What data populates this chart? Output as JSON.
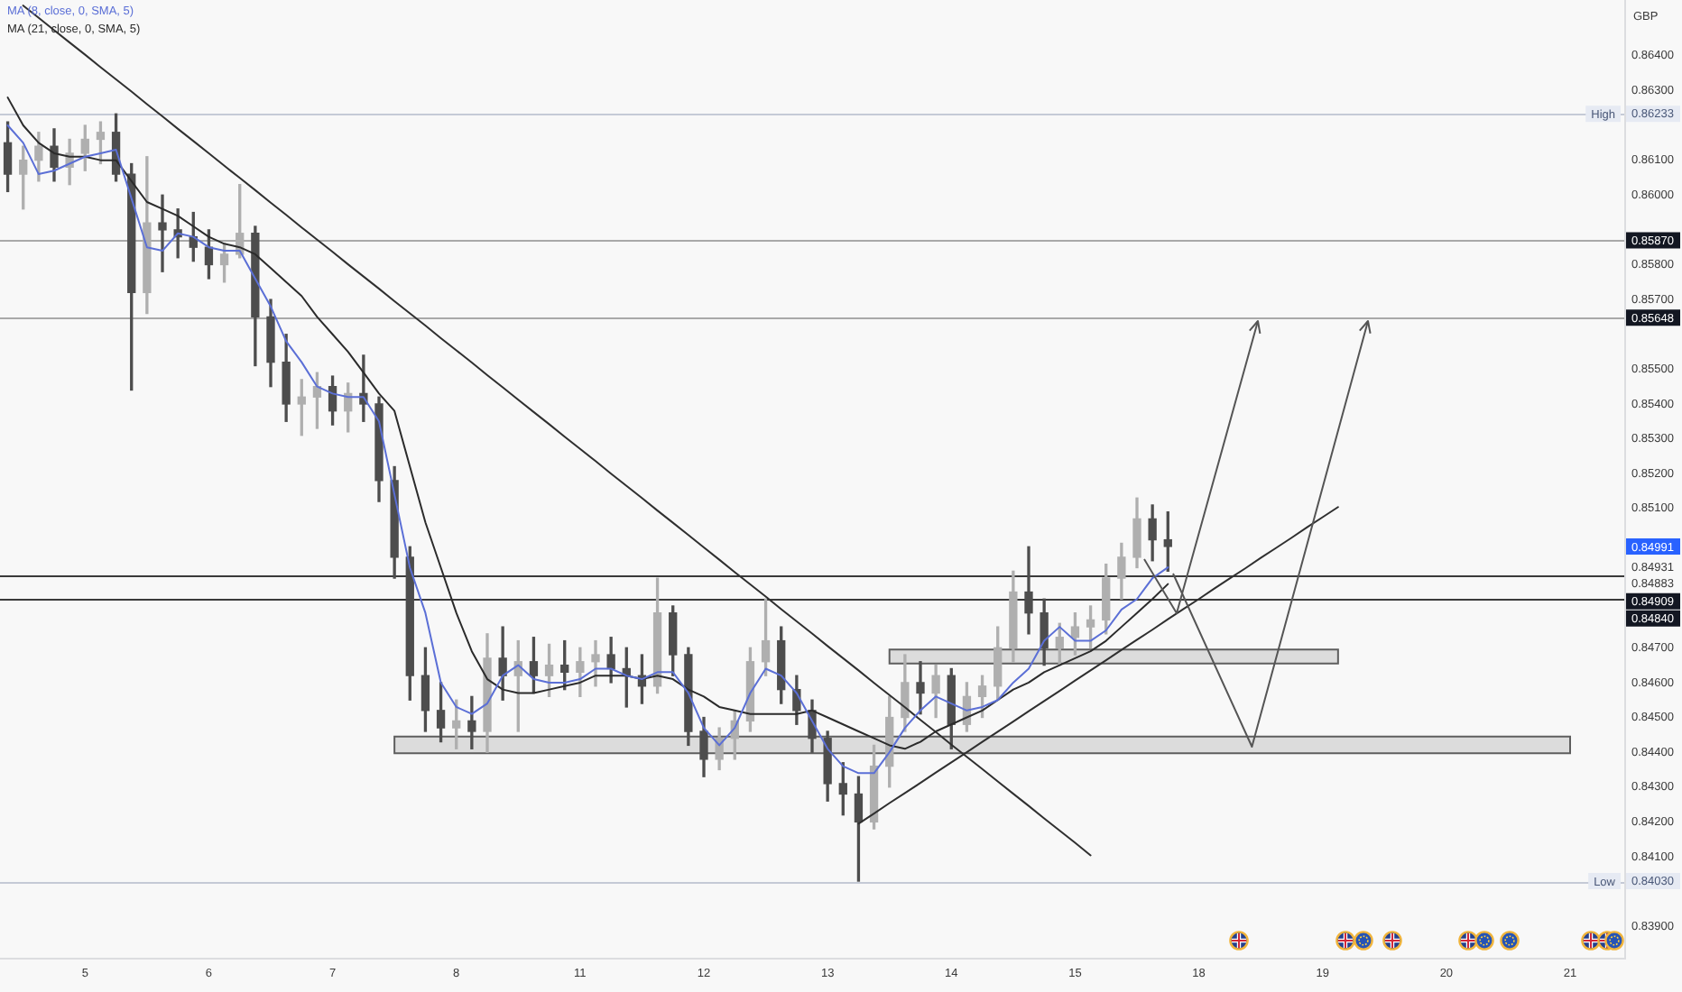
{
  "chart_data": {
    "type": "candlestick",
    "ylabel": "GBP",
    "legend": "top left",
    "grid": false,
    "marker": "none",
    "categories": [
      null,
      null,
      null,
      null,
      null,
      "5",
      null,
      null,
      null,
      null,
      null,
      null,
      null,
      "6",
      null,
      null,
      null,
      null,
      null,
      null,
      null,
      "7",
      null,
      null,
      null,
      null,
      null,
      null,
      null,
      "8",
      null,
      null,
      null,
      null,
      null,
      null,
      null,
      "11",
      null,
      null,
      null,
      null,
      null,
      null,
      null,
      "12",
      null,
      null,
      null,
      null,
      null,
      null,
      null,
      "13",
      null,
      null,
      null,
      null,
      null,
      null,
      null,
      "14",
      null,
      null,
      null,
      null,
      null,
      null,
      null,
      "15",
      null,
      null,
      null,
      null,
      null,
      null,
      null,
      "18",
      null,
      null,
      null,
      null,
      null,
      null,
      null,
      "19",
      null,
      null,
      null,
      null,
      null,
      null,
      null,
      "20",
      null,
      null,
      null,
      null,
      null,
      null,
      null,
      "21",
      null,
      null,
      null
    ],
    "ohlc": [
      [
        0.8615,
        0.8621,
        0.8601,
        0.8606
      ],
      [
        0.8606,
        0.8614,
        0.8596,
        0.861
      ],
      [
        0.861,
        0.8618,
        0.8604,
        0.8614
      ],
      [
        0.8614,
        0.8619,
        0.8604,
        0.8608
      ],
      [
        0.8608,
        0.8616,
        0.8603,
        0.8612
      ],
      [
        0.8612,
        0.862,
        0.8607,
        0.8616
      ],
      [
        0.8616,
        0.8621,
        0.8609,
        0.8618
      ],
      [
        0.8618,
        0.86233,
        0.8604,
        0.8606
      ],
      [
        0.8606,
        0.8609,
        0.8544,
        0.8572
      ],
      [
        0.8572,
        0.8611,
        0.8566,
        0.8592
      ],
      [
        0.8592,
        0.86,
        0.8578,
        0.859
      ],
      [
        0.859,
        0.8596,
        0.8582,
        0.8588
      ],
      [
        0.8588,
        0.8595,
        0.8581,
        0.8585
      ],
      [
        0.8585,
        0.859,
        0.8576,
        0.858
      ],
      [
        0.858,
        0.8586,
        0.8575,
        0.8583
      ],
      [
        0.8583,
        0.8603,
        0.8582,
        0.8589
      ],
      [
        0.8589,
        0.8591,
        0.8551,
        0.8565
      ],
      [
        0.8565,
        0.857,
        0.8545,
        0.8552
      ],
      [
        0.8552,
        0.856,
        0.8535,
        0.854
      ],
      [
        0.854,
        0.8547,
        0.8531,
        0.8542
      ],
      [
        0.8542,
        0.8549,
        0.8533,
        0.8545
      ],
      [
        0.8545,
        0.8548,
        0.8534,
        0.8538
      ],
      [
        0.8538,
        0.8546,
        0.8532,
        0.8543
      ],
      [
        0.8543,
        0.8554,
        0.8535,
        0.854
      ],
      [
        0.854,
        0.8542,
        0.8512,
        0.8518
      ],
      [
        0.8518,
        0.8522,
        0.849,
        0.8496
      ],
      [
        0.8496,
        0.8499,
        0.8455,
        0.8462
      ],
      [
        0.8462,
        0.847,
        0.8446,
        0.8452
      ],
      [
        0.8452,
        0.846,
        0.8443,
        0.8447
      ],
      [
        0.8447,
        0.8455,
        0.8441,
        0.8449
      ],
      [
        0.8449,
        0.8456,
        0.8441,
        0.8446
      ],
      [
        0.8446,
        0.8474,
        0.844,
        0.8467
      ],
      [
        0.8467,
        0.8476,
        0.8455,
        0.8462
      ],
      [
        0.8462,
        0.8472,
        0.8446,
        0.8466
      ],
      [
        0.8466,
        0.8473,
        0.8457,
        0.8462
      ],
      [
        0.8462,
        0.8471,
        0.8456,
        0.8465
      ],
      [
        0.8465,
        0.8472,
        0.8458,
        0.8463
      ],
      [
        0.8463,
        0.847,
        0.8456,
        0.8466
      ],
      [
        0.8466,
        0.8472,
        0.8459,
        0.8468
      ],
      [
        0.8468,
        0.8473,
        0.846,
        0.8464
      ],
      [
        0.8464,
        0.847,
        0.8453,
        0.8462
      ],
      [
        0.8462,
        0.8468,
        0.8454,
        0.8459
      ],
      [
        0.8459,
        0.849,
        0.8457,
        0.848
      ],
      [
        0.848,
        0.8482,
        0.8462,
        0.8468
      ],
      [
        0.8468,
        0.847,
        0.8442,
        0.8446
      ],
      [
        0.8446,
        0.845,
        0.8433,
        0.8438
      ],
      [
        0.8438,
        0.8447,
        0.8435,
        0.8444
      ],
      [
        0.8444,
        0.8452,
        0.8438,
        0.8449
      ],
      [
        0.8449,
        0.847,
        0.8446,
        0.8466
      ],
      [
        0.8466,
        0.8484,
        0.8462,
        0.8472
      ],
      [
        0.8472,
        0.8476,
        0.8454,
        0.8458
      ],
      [
        0.8458,
        0.8462,
        0.8448,
        0.8452
      ],
      [
        0.8452,
        0.8455,
        0.844,
        0.8444
      ],
      [
        0.8444,
        0.8446,
        0.8426,
        0.8431
      ],
      [
        0.8431,
        0.8437,
        0.8422,
        0.8428
      ],
      [
        0.8428,
        0.8433,
        0.8403,
        0.842
      ],
      [
        0.842,
        0.8442,
        0.8418,
        0.8436
      ],
      [
        0.8436,
        0.8456,
        0.843,
        0.845
      ],
      [
        0.845,
        0.8468,
        0.8446,
        0.846
      ],
      [
        0.846,
        0.8466,
        0.8451,
        0.8457
      ],
      [
        0.8457,
        0.8465,
        0.845,
        0.8462
      ],
      [
        0.8462,
        0.8464,
        0.8441,
        0.8448
      ],
      [
        0.8448,
        0.846,
        0.8446,
        0.8456
      ],
      [
        0.8456,
        0.8462,
        0.845,
        0.8459
      ],
      [
        0.8459,
        0.8476,
        0.8455,
        0.847
      ],
      [
        0.847,
        0.8492,
        0.8466,
        0.8486
      ],
      [
        0.8486,
        0.8499,
        0.8474,
        0.848
      ],
      [
        0.848,
        0.8484,
        0.8465,
        0.847
      ],
      [
        0.847,
        0.8477,
        0.8465,
        0.8473
      ],
      [
        0.8473,
        0.848,
        0.8468,
        0.8476
      ],
      [
        0.8476,
        0.8482,
        0.847,
        0.8478
      ],
      [
        0.8478,
        0.8494,
        0.8474,
        0.849
      ],
      [
        0.849,
        0.85,
        0.8484,
        0.8496
      ],
      [
        0.8496,
        0.8513,
        0.8493,
        0.8507
      ],
      [
        0.8507,
        0.8511,
        0.8495,
        0.8501
      ],
      [
        0.8501,
        0.8509,
        0.8492,
        0.84991
      ],
      null,
      null,
      null,
      null,
      null,
      null,
      null,
      null,
      null,
      null,
      null,
      null,
      null,
      null,
      null,
      null,
      null,
      null,
      null,
      null,
      null,
      null,
      null,
      null,
      null,
      null,
      null,
      null,
      null
    ],
    "colors": [
      "#4d4d4d",
      "#afafaf",
      "#afafaf",
      "#4d4d4d",
      "#afafaf",
      "#afafaf",
      "#afafaf",
      "#4d4d4d",
      "#4d4d4d",
      "#afafaf",
      "#4d4d4d",
      "#4d4d4d",
      "#4d4d4d",
      "#4d4d4d",
      "#afafaf",
      "#afafaf",
      "#4d4d4d",
      "#4d4d4d",
      "#4d4d4d",
      "#afafaf",
      "#afafaf",
      "#4d4d4d",
      "#afafaf",
      "#4d4d4d",
      "#4d4d4d",
      "#4d4d4d",
      "#4d4d4d",
      "#4d4d4d",
      "#4d4d4d",
      "#afafaf",
      "#4d4d4d",
      "#afafaf",
      "#4d4d4d",
      "#afafaf",
      "#4d4d4d",
      "#afafaf",
      "#4d4d4d",
      "#afafaf",
      "#afafaf",
      "#4d4d4d",
      "#4d4d4d",
      "#4d4d4d",
      "#afafaf",
      "#4d4d4d",
      "#4d4d4d",
      "#4d4d4d",
      "#afafaf",
      "#afafaf",
      "#afafaf",
      "#afafaf",
      "#4d4d4d",
      "#4d4d4d",
      "#4d4d4d",
      "#4d4d4d",
      "#4d4d4d",
      "#4d4d4d",
      "#afafaf",
      "#afafaf",
      "#afafaf",
      "#4d4d4d",
      "#afafaf",
      "#4d4d4d",
      "#afafaf",
      "#afafaf",
      "#afafaf",
      "#afafaf",
      "#4d4d4d",
      "#4d4d4d",
      "#afafaf",
      "#afafaf",
      "#afafaf",
      "#afafaf",
      "#afafaf",
      "#afafaf",
      "#4d4d4d",
      "#4d4d4d",
      null,
      null,
      null,
      null,
      null,
      null,
      null,
      null,
      null,
      null,
      null,
      null,
      null,
      null,
      null,
      null,
      null,
      null,
      null,
      null,
      null,
      null,
      null,
      null,
      null,
      null,
      null,
      null,
      null
    ],
    "value_labels": [
      null,
      null,
      null,
      null,
      null,
      null,
      null,
      null,
      null,
      null,
      null,
      null,
      null,
      null,
      null,
      null,
      null,
      null,
      null,
      null,
      null,
      null,
      null,
      null,
      null,
      null,
      null,
      null,
      null,
      null,
      null,
      null,
      null,
      null,
      null,
      null,
      null,
      null,
      null,
      null,
      null,
      null,
      null,
      null,
      null,
      null,
      null,
      null,
      null,
      null,
      null,
      null,
      null,
      null,
      null,
      null,
      null,
      null,
      null,
      null,
      null,
      null,
      null,
      null,
      null,
      null,
      null,
      null,
      null,
      null,
      null,
      null,
      null,
      null,
      null,
      "0.84991",
      null,
      null,
      null,
      null,
      null,
      null,
      null,
      null,
      null,
      null,
      null,
      null,
      null,
      null,
      null,
      null,
      null,
      null,
      null,
      null,
      null,
      null,
      null,
      null,
      null,
      null,
      null,
      null,
      null
    ],
    "series": [
      {
        "name": "MA (8, close, 0, SMA, 5)",
        "type": "line",
        "color": "#5b6fd6",
        "values": [
          0.862,
          0.8615,
          0.8606,
          0.8607,
          0.8609,
          0.8611,
          0.8612,
          0.8613,
          0.8599,
          0.8585,
          0.8584,
          0.8589,
          0.8588,
          0.8585,
          0.8584,
          0.8584,
          0.8576,
          0.8568,
          0.8558,
          0.8552,
          0.8545,
          0.8543,
          0.8542,
          0.8542,
          0.8535,
          0.8514,
          0.8493,
          0.848,
          0.846,
          0.8453,
          0.8451,
          0.8454,
          0.8462,
          0.8465,
          0.8461,
          0.846,
          0.846,
          0.8461,
          0.8464,
          0.8464,
          0.8462,
          0.8461,
          0.8463,
          0.8463,
          0.8457,
          0.8447,
          0.8442,
          0.8447,
          0.8457,
          0.8464,
          0.8462,
          0.8457,
          0.8449,
          0.8441,
          0.8436,
          0.8434,
          0.8434,
          0.844,
          0.8447,
          0.8452,
          0.8456,
          0.8454,
          0.8452,
          0.8453,
          0.8455,
          0.846,
          0.8464,
          0.8472,
          0.8476,
          0.8472,
          0.8472,
          0.8475,
          0.8481,
          0.8484,
          0.849,
          0.84931,
          null,
          null,
          null,
          null,
          null,
          null,
          null,
          null,
          null,
          null,
          null,
          null,
          null,
          null,
          null,
          null,
          null,
          null,
          null,
          null,
          null,
          null,
          null,
          null,
          null,
          null,
          null,
          null,
          null
        ]
      },
      {
        "name": "MA (21, close, 0, SMA, 5)",
        "type": "line",
        "color": "#2b2b2b",
        "values": [
          0.8628,
          0.862,
          0.8615,
          0.8612,
          0.8611,
          0.8611,
          0.861,
          0.861,
          0.8604,
          0.8598,
          0.8596,
          0.8594,
          0.8591,
          0.8588,
          0.8586,
          0.8585,
          0.8583,
          0.8579,
          0.8575,
          0.8571,
          0.8565,
          0.856,
          0.8555,
          0.8549,
          0.8543,
          0.8538,
          0.8522,
          0.8506,
          0.8493,
          0.848,
          0.8469,
          0.8461,
          0.8458,
          0.8457,
          0.8457,
          0.8458,
          0.8459,
          0.846,
          0.8462,
          0.8462,
          0.8462,
          0.8461,
          0.8462,
          0.8461,
          0.8458,
          0.8456,
          0.8453,
          0.8452,
          0.8451,
          0.8451,
          0.8451,
          0.8451,
          0.8452,
          0.845,
          0.8448,
          0.8446,
          0.8444,
          0.8442,
          0.8441,
          0.8443,
          0.8446,
          0.8448,
          0.845,
          0.8452,
          0.8455,
          0.8458,
          0.846,
          0.8463,
          0.8465,
          0.8467,
          0.8469,
          0.8472,
          0.8476,
          0.848,
          0.8484,
          0.84883,
          null,
          null,
          null,
          null,
          null,
          null,
          null,
          null,
          null,
          null,
          null,
          null,
          null,
          null,
          null,
          null,
          null,
          null,
          null,
          null,
          null,
          null,
          null,
          null,
          null,
          null,
          null,
          null,
          null
        ]
      },
      {
        "type": "line",
        "color": "#2f2f2f",
        "values": [
          null,
          0.86544,
          0.86509,
          0.86473,
          0.86438,
          0.86403,
          0.86367,
          0.86332,
          0.86297,
          0.86261,
          0.86226,
          0.8619,
          0.86155,
          0.8612,
          0.86084,
          0.86049,
          0.86014,
          0.85978,
          0.85943,
          0.85907,
          0.85872,
          0.85837,
          0.85801,
          0.85766,
          0.85731,
          0.85695,
          0.8566,
          0.85625,
          0.85589,
          0.85554,
          0.85519,
          0.85483,
          0.85448,
          0.85412,
          0.85377,
          0.85342,
          0.85306,
          0.85271,
          0.85236,
          0.852,
          0.85165,
          0.8513,
          0.85094,
          0.85059,
          0.85024,
          0.84988,
          0.84953,
          0.84917,
          0.84882,
          0.84847,
          0.84811,
          0.84776,
          0.84741,
          0.84705,
          0.8467,
          0.84635,
          0.84599,
          0.84564,
          0.84529,
          0.84493,
          0.84458,
          0.84422,
          0.84387,
          0.84352,
          0.84316,
          0.84281,
          0.84246,
          0.8421,
          0.84175,
          0.8414,
          0.84104,
          null,
          null,
          null,
          null,
          null,
          null,
          null,
          null,
          null,
          null,
          null,
          null,
          null,
          null,
          null,
          null,
          null,
          null,
          null,
          null,
          null,
          null,
          null,
          null,
          null,
          null,
          null,
          null,
          null,
          null,
          null,
          null,
          null,
          null
        ]
      },
      {
        "type": "line",
        "color": "#2f2f2f",
        "values": [
          null,
          null,
          null,
          null,
          null,
          null,
          null,
          null,
          null,
          null,
          null,
          null,
          null,
          null,
          null,
          null,
          null,
          null,
          null,
          null,
          null,
          null,
          null,
          null,
          null,
          null,
          null,
          null,
          null,
          null,
          null,
          null,
          null,
          null,
          null,
          null,
          null,
          null,
          null,
          null,
          null,
          null,
          null,
          null,
          null,
          null,
          null,
          null,
          null,
          null,
          null,
          null,
          null,
          null,
          null,
          0.84195,
          0.84224,
          0.84254,
          0.84283,
          0.84312,
          0.84342,
          0.84371,
          0.844,
          0.8443,
          0.84459,
          0.84488,
          0.84518,
          0.84547,
          0.84576,
          0.84606,
          0.84635,
          0.84664,
          0.84694,
          0.84723,
          0.84752,
          0.84782,
          0.84811,
          0.8484,
          0.8487,
          0.84899,
          0.84928,
          0.84958,
          0.84987,
          0.85016,
          0.85046,
          0.85075,
          0.85104,
          null,
          null,
          null,
          null,
          null,
          null,
          null,
          null,
          null,
          null,
          null,
          null,
          null,
          null,
          null,
          null,
          null,
          null
        ]
      },
      {
        "type": "line",
        "color": "#5e5e5e",
        "values": [
          null,
          null,
          null,
          null,
          null,
          null,
          null,
          null,
          null,
          null,
          null,
          null,
          null,
          null,
          null,
          null,
          null,
          null,
          null,
          null,
          null,
          null,
          null,
          null,
          null,
          null,
          null,
          null,
          null,
          null,
          null,
          null,
          null,
          null,
          null,
          null,
          null,
          null,
          null,
          null,
          null,
          null,
          null,
          null,
          null,
          null,
          null,
          null,
          null,
          null,
          null,
          null,
          null,
          null,
          null,
          null,
          null,
          null,
          null,
          null,
          null,
          null,
          null,
          null,
          null,
          null,
          null,
          null,
          null,
          null,
          null,
          null,
          null,
          null,
          null,
          null,
          null,
          null,
          null,
          null,
          null,
          null,
          null,
          null,
          null,
          null,
          null,
          null,
          null,
          null,
          null,
          null,
          null,
          null,
          null,
          null,
          null,
          null,
          null,
          null,
          null,
          null,
          null,
          null,
          null
        ],
        "lower": [
          null,
          null,
          null,
          null,
          null,
          null,
          null,
          null,
          null,
          null,
          null,
          null,
          null,
          null,
          null,
          null,
          null,
          null,
          null,
          null,
          null,
          null,
          null,
          null,
          null,
          0.84397,
          0.84397,
          0.84397,
          0.84397,
          0.84397,
          0.84397,
          0.84397,
          0.84397,
          0.84397,
          0.84397,
          0.84397,
          0.84397,
          0.84397,
          0.84397,
          0.84397,
          0.84397,
          0.84397,
          0.84397,
          0.84397,
          0.84397,
          0.84397,
          0.84397,
          0.84397,
          0.84397,
          0.84397,
          0.84397,
          0.84397,
          0.84397,
          0.84397,
          0.84397,
          0.84397,
          0.84397,
          0.84397,
          0.84397,
          0.84397,
          0.84397,
          0.84397,
          0.84397,
          0.84397,
          0.84397,
          0.84397,
          0.84397,
          0.84397,
          0.84397,
          0.84397,
          0.84397,
          0.84397,
          0.84397,
          0.84397,
          0.84397,
          0.84397,
          0.84397,
          0.84397,
          0.84397,
          0.84397,
          0.84397,
          0.84397,
          0.84397,
          0.84397,
          0.84397,
          0.84397,
          0.84397,
          0.84397,
          0.84397,
          0.84397,
          0.84397,
          0.84397,
          0.84397,
          0.84397,
          0.84397,
          0.84397,
          0.84397,
          0.84397,
          0.84397,
          0.84397,
          0.84397,
          0.84397,
          null,
          null,
          null
        ],
        "upper": [
          null,
          null,
          null,
          null,
          null,
          null,
          null,
          null,
          null,
          null,
          null,
          null,
          null,
          null,
          null,
          null,
          null,
          null,
          null,
          null,
          null,
          null,
          null,
          null,
          null,
          0.84445,
          0.84445,
          0.84445,
          0.84445,
          0.84445,
          0.84445,
          0.84445,
          0.84445,
          0.84445,
          0.84445,
          0.84445,
          0.84445,
          0.84445,
          0.84445,
          0.84445,
          0.84445,
          0.84445,
          0.84445,
          0.84445,
          0.84445,
          0.84445,
          0.84445,
          0.84445,
          0.84445,
          0.84445,
          0.84445,
          0.84445,
          0.84445,
          0.84445,
          0.84445,
          0.84445,
          0.84445,
          0.84445,
          0.84445,
          0.84445,
          0.84445,
          0.84445,
          0.84445,
          0.84445,
          0.84445,
          0.84445,
          0.84445,
          0.84445,
          0.84445,
          0.84445,
          0.84445,
          0.84445,
          0.84445,
          0.84445,
          0.84445,
          0.84445,
          0.84445,
          0.84445,
          0.84445,
          0.84445,
          0.84445,
          0.84445,
          0.84445,
          0.84445,
          0.84445,
          0.84445,
          0.84445,
          0.84445,
          0.84445,
          0.84445,
          0.84445,
          0.84445,
          0.84445,
          0.84445,
          0.84445,
          0.84445,
          0.84445,
          0.84445,
          0.84445,
          0.84445,
          0.84445,
          0.84445,
          null,
          null,
          null
        ]
      },
      {
        "type": "line",
        "color": "#5e5e5e",
        "values": [
          null,
          null,
          null,
          null,
          null,
          null,
          null,
          null,
          null,
          null,
          null,
          null,
          null,
          null,
          null,
          null,
          null,
          null,
          null,
          null,
          null,
          null,
          null,
          null,
          null,
          null,
          null,
          null,
          null,
          null,
          null,
          null,
          null,
          null,
          null,
          null,
          null,
          null,
          null,
          null,
          null,
          null,
          null,
          null,
          null,
          null,
          null,
          null,
          null,
          null,
          null,
          null,
          null,
          null,
          null,
          null,
          null,
          null,
          null,
          null,
          null,
          null,
          null,
          null,
          null,
          null,
          null,
          null,
          null,
          null,
          null,
          null,
          null,
          null,
          null,
          null,
          null,
          null,
          null,
          null,
          null,
          null,
          null,
          null,
          null,
          null,
          null,
          null,
          null,
          null,
          null,
          null,
          null,
          null,
          null,
          null,
          null,
          null,
          null,
          null,
          null,
          null,
          null,
          null,
          null
        ],
        "lower": [
          null,
          null,
          null,
          null,
          null,
          null,
          null,
          null,
          null,
          null,
          null,
          null,
          null,
          null,
          null,
          null,
          null,
          null,
          null,
          null,
          null,
          null,
          null,
          null,
          null,
          null,
          null,
          null,
          null,
          null,
          null,
          null,
          null,
          null,
          null,
          null,
          null,
          null,
          null,
          null,
          null,
          null,
          null,
          null,
          null,
          null,
          null,
          null,
          null,
          null,
          null,
          null,
          null,
          null,
          null,
          null,
          null,
          0.84655,
          0.84655,
          0.84655,
          0.84655,
          0.84655,
          0.84655,
          0.84655,
          0.84655,
          0.84655,
          0.84655,
          0.84655,
          0.84655,
          0.84655,
          0.84655,
          0.84655,
          0.84655,
          0.84655,
          0.84655,
          0.84655,
          0.84655,
          0.84655,
          0.84655,
          0.84655,
          0.84655,
          0.84655,
          0.84655,
          0.84655,
          0.84655,
          0.84655,
          0.84655,
          null,
          null,
          null,
          null,
          null,
          null,
          null,
          null,
          null,
          null,
          null,
          null,
          null,
          null,
          null,
          null,
          null,
          null
        ],
        "upper": [
          null,
          null,
          null,
          null,
          null,
          null,
          null,
          null,
          null,
          null,
          null,
          null,
          null,
          null,
          null,
          null,
          null,
          null,
          null,
          null,
          null,
          null,
          null,
          null,
          null,
          null,
          null,
          null,
          null,
          null,
          null,
          null,
          null,
          null,
          null,
          null,
          null,
          null,
          null,
          null,
          null,
          null,
          null,
          null,
          null,
          null,
          null,
          null,
          null,
          null,
          null,
          null,
          null,
          null,
          null,
          null,
          null,
          0.84695,
          0.84695,
          0.84695,
          0.84695,
          0.84695,
          0.84695,
          0.84695,
          0.84695,
          0.84695,
          0.84695,
          0.84695,
          0.84695,
          0.84695,
          0.84695,
          0.84695,
          0.84695,
          0.84695,
          0.84695,
          0.84695,
          0.84695,
          0.84695,
          0.84695,
          0.84695,
          0.84695,
          0.84695,
          0.84695,
          0.84695,
          0.84695,
          0.84695,
          0.84695,
          null,
          null,
          null,
          null,
          null,
          null,
          null,
          null,
          null,
          null,
          null,
          null,
          null,
          null,
          null,
          null,
          null,
          null
        ]
      }
    ],
    "ylim": [
      0.8381,
      0.8656
    ],
    "yticks": [
      {
        "value": 0.864,
        "label": "0.86400"
      },
      {
        "value": 0.863,
        "label": "0.86300"
      },
      {
        "value": 0.86233,
        "label": "0.86233"
      },
      {
        "value": 0.861,
        "label": "0.86100"
      },
      {
        "value": 0.86,
        "label": "0.86000"
      },
      {
        "value": 0.858,
        "label": "0.85800"
      },
      {
        "value": 0.857,
        "label": "0.85700"
      },
      {
        "value": 0.855,
        "label": "0.85500"
      },
      {
        "value": 0.854,
        "label": "0.85400"
      },
      {
        "value": 0.853,
        "label": "0.85300"
      },
      {
        "value": 0.852,
        "label": "0.85200"
      },
      {
        "value": 0.851,
        "label": "0.85100"
      },
      {
        "value": 0.84931,
        "label": "0.84931"
      },
      {
        "value": 0.84883,
        "label": "0.84883"
      },
      {
        "value": 0.847,
        "label": "0.84700"
      },
      {
        "value": 0.846,
        "label": "0.84600"
      },
      {
        "value": 0.845,
        "label": "0.84500"
      },
      {
        "value": 0.844,
        "label": "0.84400"
      },
      {
        "value": 0.843,
        "label": "0.84300"
      },
      {
        "value": 0.842,
        "label": "0.84200"
      },
      {
        "value": 0.841,
        "label": "0.84100"
      },
      {
        "value": 0.8403,
        "label": "0.84030"
      },
      {
        "value": 0.839,
        "label": "0.83900"
      }
    ],
    "ref_lines": [
      {
        "axis": "y",
        "value": 0.86233,
        "label": "High",
        "color": "#c5cad6"
      },
      {
        "axis": "y",
        "value": 0.8587,
        "label": "0.85870",
        "color": "#a9a9a9"
      },
      {
        "axis": "y",
        "value": 0.85648,
        "label": "0.85648",
        "color": "#a9a9a9"
      },
      {
        "axis": "y",
        "value": 0.84909,
        "label": "0.84909",
        "color": "#3a3a3a"
      },
      {
        "axis": "y",
        "value": 0.8484,
        "label": "0.84840",
        "color": "#3a3a3a"
      },
      {
        "axis": "y",
        "value": 0.8403,
        "label": "Low",
        "color": "#c5cad6"
      }
    ]
  }
}
